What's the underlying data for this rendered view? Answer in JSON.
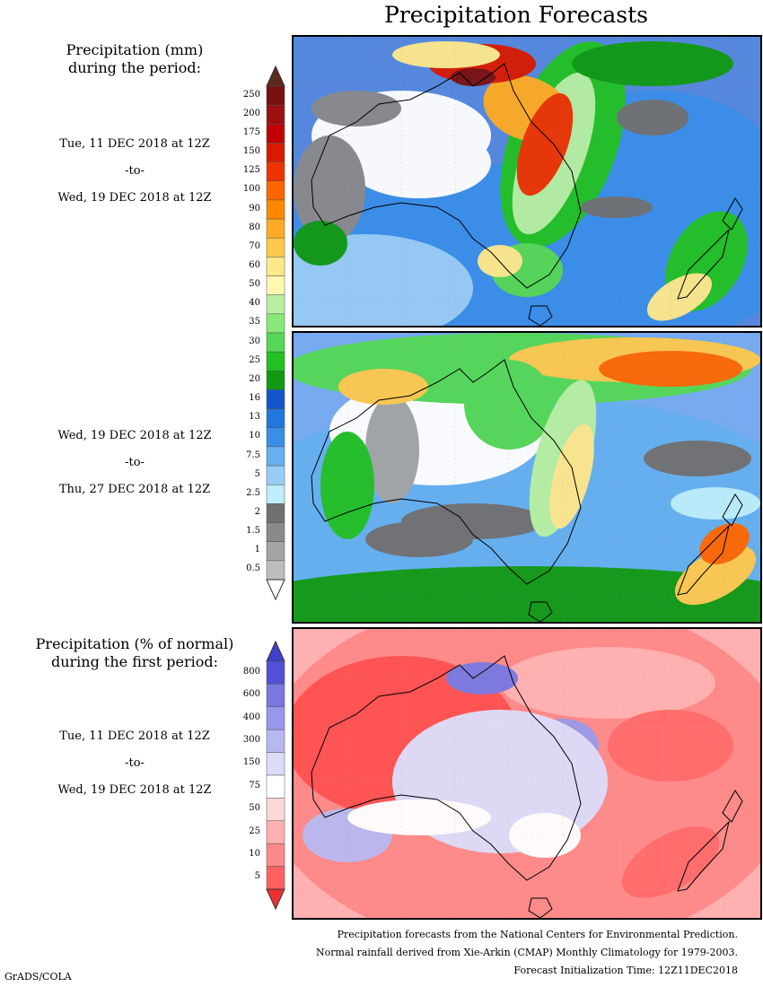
{
  "title": "Precipitation Forecasts",
  "section1": {
    "heading_line1": "Precipitation (mm)",
    "heading_line2": "during the period:",
    "start": "Tue, 11 DEC 2018 at 12Z",
    "sep": "-to-",
    "end": "Wed, 19 DEC 2018 at 12Z"
  },
  "section2": {
    "start": "Wed, 19 DEC 2018 at 12Z",
    "sep": "-to-",
    "end": "Thu, 27 DEC 2018 at 12Z"
  },
  "section3": {
    "heading_line1": "Precipitation (% of normal)",
    "heading_line2": "during the first period:",
    "start": "Tue, 11 DEC 2018 at 12Z",
    "sep": "-to-",
    "end": "Wed, 19 DEC 2018 at 12Z"
  },
  "legend_mm": {
    "labels": [
      "250",
      "200",
      "175",
      "150",
      "125",
      "100",
      "90",
      "80",
      "70",
      "60",
      "50",
      "40",
      "35",
      "30",
      "25",
      "20",
      "16",
      "13",
      "10",
      "7.5",
      "5",
      "2.5",
      "2",
      "1.5",
      "1",
      "0.5"
    ],
    "colors": [
      "#7a0f0f",
      "#9e0f0f",
      "#c00000",
      "#d81a00",
      "#ee3300",
      "#ff6600",
      "#ff8800",
      "#ffaa22",
      "#ffc84a",
      "#ffe88a",
      "#fff8b0",
      "#b8f0a0",
      "#88e878",
      "#55d855",
      "#22c022",
      "#119911",
      "#1155cc",
      "#2277dd",
      "#3a8ee8",
      "#66b0f0",
      "#99ccf5",
      "#bdeefa",
      "#707070",
      "#8a8a8a",
      "#a4a4a4",
      "#bdbdbd"
    ],
    "top_arrow_color": "#5a2a1a",
    "bottom_arrow_color": "#ffffff"
  },
  "legend_pct": {
    "labels": [
      "800",
      "600",
      "400",
      "300",
      "150",
      "75",
      "50",
      "25",
      "10",
      "5"
    ],
    "colors": [
      "#5050d8",
      "#7878e0",
      "#9898e8",
      "#b8b8f0",
      "#dcdcf8",
      "#ffffff",
      "#ffd8d8",
      "#ffb0b0",
      "#ff8888",
      "#ff6060"
    ],
    "top_arrow_color": "#4040cc",
    "bottom_arrow_color": "#ee3030"
  },
  "footer": {
    "line1": "Precipitation forecasts from the National Centers for Environmental Prediction.",
    "line2": "Normal rainfall derived from Xie-Arkin (CMAP) Monthly Climatology for 1979-2003.",
    "line3": "Forecast Initialization Time: 12Z11DEC2018"
  },
  "credit": "GrADS/COLA"
}
